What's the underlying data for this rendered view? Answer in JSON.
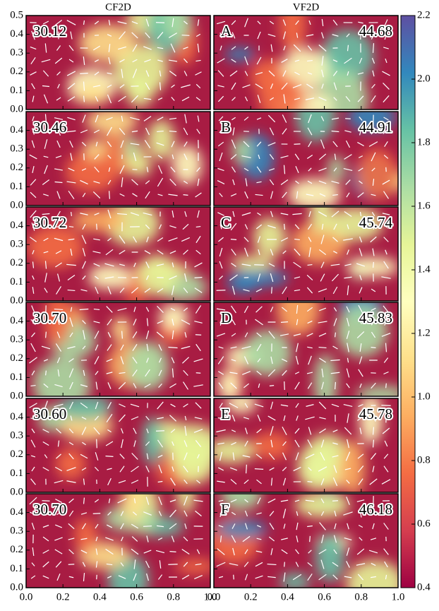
{
  "chart_data": {
    "type": "heatmap-grid",
    "columns": [
      "CF2D",
      "VF2D"
    ],
    "xlim": [
      0,
      1
    ],
    "xticks": [
      {
        "value": 0,
        "label": "0.0"
      },
      0.2,
      0.4,
      0.6,
      0.8,
      {
        "value": 1,
        "label": "1.0"
      }
    ],
    "ylim": [
      0,
      0.5
    ],
    "rows": [
      {
        "yticks": [
          {
            "value": 0,
            "label": "0.0"
          },
          0.1,
          0.2,
          0.3,
          0.4,
          0.5
        ],
        "panels": [
          {
            "time": "30.12"
          },
          {
            "label": "A",
            "time": "44.68"
          }
        ]
      },
      {
        "yticks": [
          {
            "value": 0,
            "label": "0.0"
          },
          0.1,
          0.2,
          0.3,
          0.4
        ],
        "panels": [
          {
            "time": "30.46"
          },
          {
            "label": "B",
            "time": "44.91"
          }
        ]
      },
      {
        "yticks": [
          {
            "value": 0,
            "label": "0.0"
          },
          0.1,
          0.2,
          0.3,
          0.4
        ],
        "panels": [
          {
            "time": "30.72"
          },
          {
            "label": "C",
            "time": "45.74"
          }
        ]
      },
      {
        "yticks": [
          {
            "value": 0,
            "label": "0.0"
          },
          0.1,
          0.2,
          0.3,
          0.4
        ],
        "panels": [
          {
            "time": "30.70"
          },
          {
            "label": "D",
            "time": "45.83"
          }
        ]
      },
      {
        "yticks": [
          {
            "value": 0,
            "label": "0.0"
          },
          0.1,
          0.2,
          0.3,
          0.4
        ],
        "panels": [
          {
            "time": "30.60"
          },
          {
            "label": "E",
            "time": "45.78"
          }
        ]
      },
      {
        "yticks": [
          {
            "value": 0,
            "label": "0.0"
          },
          0.1,
          0.2,
          0.3,
          0.4
        ],
        "panels": [
          {
            "time": "30.70"
          },
          {
            "label": "F",
            "time": "46.18"
          }
        ]
      }
    ],
    "colorbar": {
      "lim": [
        0.4,
        2.2
      ],
      "ticks": [
        0.4,
        0.6,
        0.8,
        {
          "value": 1,
          "label": "1.0"
        },
        1.2,
        1.4,
        1.6,
        1.8,
        {
          "value": 2,
          "label": "2.0"
        },
        2.2
      ],
      "cmap": [
        "#9e0142",
        "#d53e4f",
        "#f46d43",
        "#fdae61",
        "#fee08b",
        "#ffffbf",
        "#e6f598",
        "#abdda4",
        "#66c2a5",
        "#3288bd",
        "#5e4fa2"
      ]
    }
  }
}
